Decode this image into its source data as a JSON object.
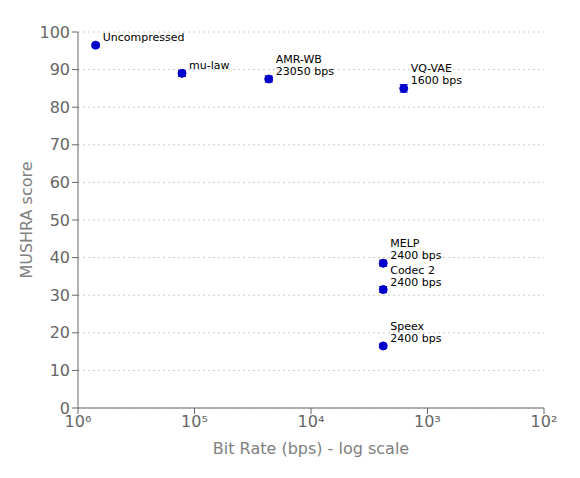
{
  "chart_data": {
    "type": "scatter",
    "xlabel": "Bit Rate (bps) - log scale",
    "ylabel": "MUSHRA score",
    "log": "x",
    "xlim": [
      1000000,
      100
    ],
    "ylim": [
      0,
      100
    ],
    "xticks": [
      {
        "value": 1000000,
        "label": "10⁶"
      },
      {
        "value": 100000,
        "label": "10⁵"
      },
      {
        "value": 10000,
        "label": "10⁴"
      },
      {
        "value": 1000,
        "label": "10³"
      },
      {
        "value": 100,
        "label": "10²"
      }
    ],
    "yticks": [
      0,
      10,
      20,
      30,
      40,
      50,
      60,
      70,
      80,
      90,
      100
    ],
    "grid": "y",
    "color": "#0000cc",
    "x": [
      705600,
      128000,
      23050,
      1600,
      2400,
      2400,
      2400
    ],
    "values": [
      96.5,
      89.0,
      87.5,
      85.0,
      38.5,
      31.5,
      16.5
    ],
    "yerr": [
      0.5,
      0.8,
      0.8,
      1.0,
      0.8,
      0.8,
      0.5
    ],
    "annotations": [
      "Uncompressed",
      "mu-law",
      "AMR-WB\n23050 bps",
      "VQ-VAE\n1600 bps",
      "MELP\n2400 bps",
      "Codec 2\n2400 bps",
      "Speex\n2400 bps"
    ]
  }
}
